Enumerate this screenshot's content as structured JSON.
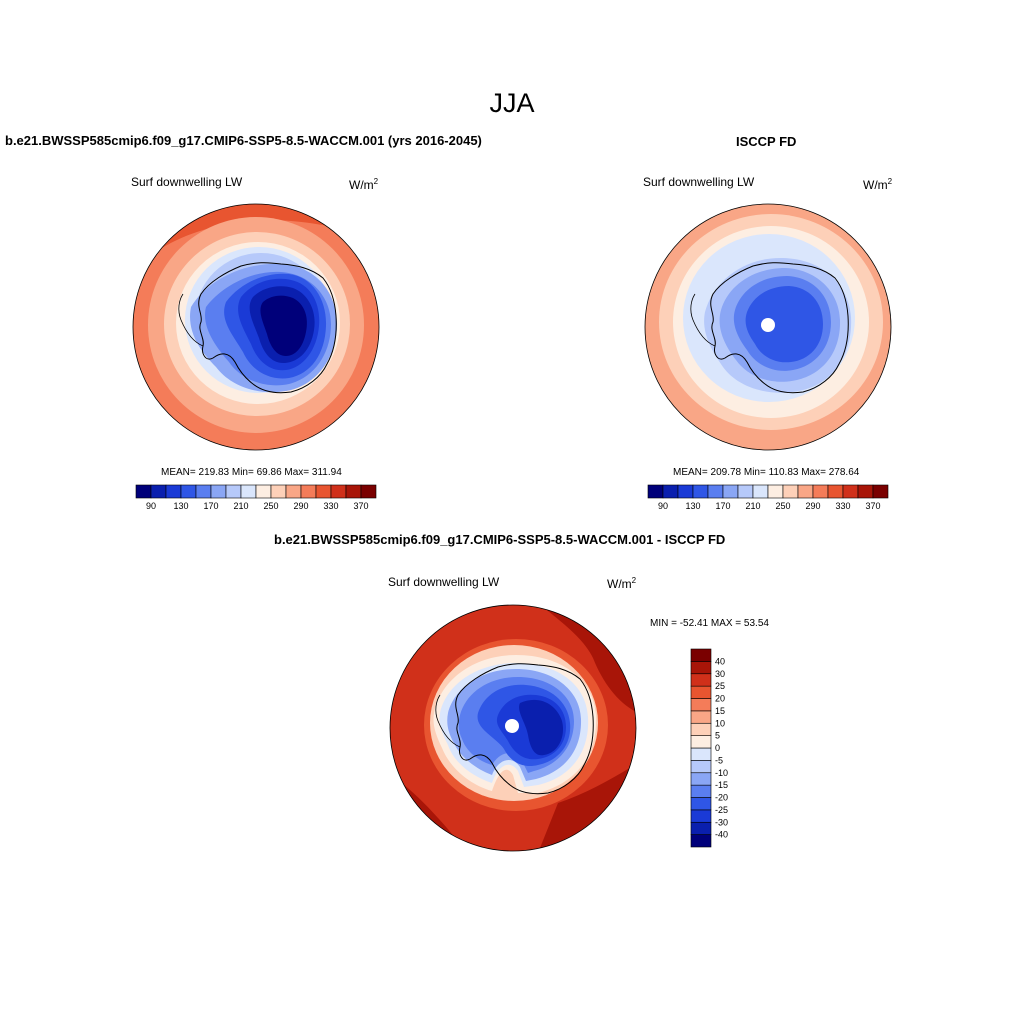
{
  "figure": {
    "season": "JJA",
    "case_title": "b.e21.BWSSP585cmip6.f09_g17.CMIP6-SSP5-8.5-WACCM.001 (yrs 2016-2045)",
    "obs_title": "ISCCP FD",
    "diff_title": "b.e21.BWSSP585cmip6.f09_g17.CMIP6-SSP5-8.5-WACCM.001 - ISCCP FD"
  },
  "chart_data": [
    {
      "type": "heatmap",
      "projection": "south-polar-stereographic",
      "variable": "Surf downwelling LW",
      "units_base": "W/m",
      "units_exp": "2",
      "stats_text": "MEAN= 219.83  Min=  69.86  Max= 311.94",
      "mean": 219.83,
      "min": 69.86,
      "max": 311.94,
      "colorbar": {
        "orientation": "horizontal",
        "levels": [
          90,
          110,
          130,
          150,
          170,
          190,
          210,
          230,
          250,
          270,
          290,
          310,
          330,
          350,
          370
        ],
        "tick_labels": [
          "90",
          "130",
          "170",
          "210",
          "250",
          "290",
          "330",
          "370"
        ],
        "colors": [
          "#00007a",
          "#0a1fae",
          "#1a3ad6",
          "#2f56e6",
          "#5a7ef0",
          "#8aa6f5",
          "#b6c9fa",
          "#dae6fc",
          "#fdeee2",
          "#fdd0b8",
          "#f9a686",
          "#f47c59",
          "#e85530",
          "#d0301a",
          "#a81508",
          "#7a0000"
        ]
      }
    },
    {
      "type": "heatmap",
      "projection": "south-polar-stereographic",
      "variable": "Surf downwelling LW",
      "units_base": "W/m",
      "units_exp": "2",
      "stats_text": "MEAN= 209.78  Min= 110.83  Max= 278.64",
      "mean": 209.78,
      "min": 110.83,
      "max": 278.64,
      "colorbar": {
        "orientation": "horizontal",
        "levels": [
          90,
          110,
          130,
          150,
          170,
          190,
          210,
          230,
          250,
          270,
          290,
          310,
          330,
          350,
          370
        ],
        "tick_labels": [
          "90",
          "130",
          "170",
          "210",
          "250",
          "290",
          "330",
          "370"
        ],
        "colors": [
          "#00007a",
          "#0a1fae",
          "#1a3ad6",
          "#2f56e6",
          "#5a7ef0",
          "#8aa6f5",
          "#b6c9fa",
          "#dae6fc",
          "#fdeee2",
          "#fdd0b8",
          "#f9a686",
          "#f47c59",
          "#e85530",
          "#d0301a",
          "#a81508",
          "#7a0000"
        ]
      }
    },
    {
      "type": "heatmap",
      "projection": "south-polar-stereographic",
      "variable": "Surf downwelling LW",
      "units_base": "W/m",
      "units_exp": "2",
      "stats_text": "MIN = -52.41 MAX =  53.54",
      "min": -52.41,
      "max": 53.54,
      "colorbar": {
        "orientation": "vertical",
        "levels": [
          -40,
          -30,
          -25,
          -20,
          -15,
          -10,
          -5,
          0,
          5,
          10,
          15,
          20,
          25,
          30,
          40
        ],
        "tick_labels": [
          "-40",
          "-30",
          "-25",
          "-20",
          "-15",
          "-10",
          "-5",
          "0",
          "5",
          "10",
          "15",
          "20",
          "25",
          "30",
          "40"
        ],
        "colors": [
          "#00007a",
          "#0a1fae",
          "#1a3ad6",
          "#2f56e6",
          "#5a7ef0",
          "#8aa6f5",
          "#b6c9fa",
          "#dae6fc",
          "#fdeee2",
          "#fdd0b8",
          "#f9a686",
          "#f47c59",
          "#e85530",
          "#d0301a",
          "#a81508",
          "#7a0000"
        ]
      }
    }
  ]
}
